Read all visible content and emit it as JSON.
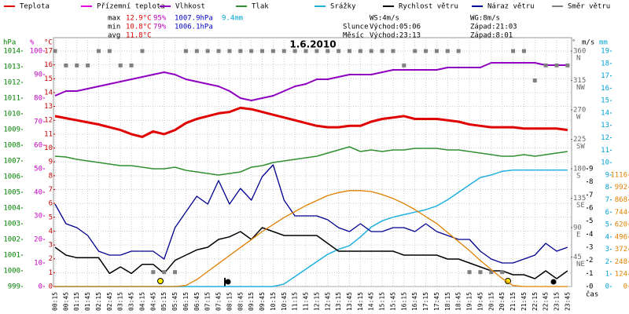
{
  "chart_data": {
    "type": "line",
    "title": "1.6.2010",
    "x_label": "čas",
    "grid": true,
    "categories": [
      "00:15",
      "00:45",
      "01:15",
      "01:45",
      "02:15",
      "02:45",
      "03:15",
      "03:45",
      "04:15",
      "04:45",
      "05:15",
      "05:45",
      "06:15",
      "06:45",
      "07:15",
      "07:45",
      "08:15",
      "08:45",
      "09:15",
      "09:45",
      "10:15",
      "10:45",
      "11:15",
      "11:45",
      "12:15",
      "12:45",
      "13:15",
      "13:45",
      "14:15",
      "14:45",
      "15:15",
      "15:45",
      "16:15",
      "16:45",
      "17:15",
      "17:45",
      "18:15",
      "18:45",
      "19:15",
      "19:45",
      "20:15",
      "20:45",
      "21:15",
      "21:45",
      "22:15",
      "22:45",
      "23:15",
      "23:45"
    ],
    "axes": {
      "pressure": {
        "label": "hPa",
        "color": "#008000",
        "lim": [
          999,
          1014
        ],
        "ticks": [
          999,
          1000,
          1001,
          1002,
          1003,
          1004,
          1005,
          1006,
          1007,
          1008,
          1009,
          1010,
          1011,
          1012,
          1013,
          1014
        ]
      },
      "humidity": {
        "label": "%",
        "color": "#c000c0",
        "lim": [
          0,
          100
        ],
        "ticks": [
          0,
          10,
          20,
          30,
          40,
          50,
          60,
          70,
          80,
          90,
          100
        ]
      },
      "temp": {
        "label": "°C",
        "color": "#c00000",
        "lim": [
          0,
          17
        ],
        "ticks": [
          0,
          1,
          2,
          3,
          4,
          5,
          6,
          7,
          8,
          9,
          10,
          11,
          12,
          13,
          14,
          15,
          16,
          17
        ]
      },
      "direction": {
        "label": "°",
        "color": "#666666",
        "lim": [
          0,
          360
        ],
        "ticks": [
          45,
          90,
          135,
          180,
          225,
          270,
          315,
          360
        ],
        "tick_names": [
          "NE",
          "E",
          "SE",
          "S",
          "SW",
          "W",
          "NW",
          "N"
        ]
      },
      "wind": {
        "label": "m/s",
        "color": "#000000",
        "lim": [
          0,
          18
        ],
        "ticks": [
          0,
          1,
          2,
          3,
          4,
          5,
          6,
          7,
          8,
          9
        ]
      },
      "rain": {
        "label": "mm",
        "color": "#00a0d0",
        "lim": [
          0,
          19
        ],
        "ticks": [
          0,
          1,
          2,
          3,
          4,
          5,
          6,
          7,
          8,
          9,
          10,
          11,
          12,
          13,
          14,
          15,
          16,
          17,
          18,
          19
        ]
      },
      "solar": {
        "color": "#e08000",
        "lim": [
          0,
          2356
        ],
        "ticks": [
          0,
          124,
          248,
          372,
          496,
          620,
          744,
          868,
          992,
          1116
        ]
      }
    },
    "series": [
      {
        "name": "Teplota",
        "color": "#e00000",
        "axis": "temp",
        "width": 3,
        "values": [
          12.3,
          12.15,
          12.0,
          11.85,
          11.7,
          11.5,
          11.3,
          11.0,
          10.8,
          11.2,
          11.0,
          11.3,
          11.8,
          12.1,
          12.3,
          12.5,
          12.6,
          12.9,
          12.8,
          12.6,
          12.4,
          12.2,
          12.0,
          11.8,
          11.6,
          11.5,
          11.5,
          11.6,
          11.6,
          11.9,
          12.1,
          12.2,
          12.3,
          12.1,
          12.1,
          12.1,
          12.0,
          11.9,
          11.7,
          11.6,
          11.5,
          11.5,
          11.5,
          11.4,
          11.4,
          11.4,
          11.4,
          11.3
        ]
      },
      {
        "name": "Přízemní teplota",
        "color": "#e000e0"
      },
      {
        "name": "Vlhkost",
        "color": "#9000c0",
        "axis": "humidity",
        "width": 2,
        "values": [
          81,
          83,
          83,
          84,
          85,
          86,
          87,
          88,
          89,
          90,
          91,
          90,
          88,
          87,
          86,
          85,
          83,
          80,
          79,
          80,
          81,
          83,
          85,
          86,
          88,
          88,
          89,
          90,
          90,
          90,
          91,
          92,
          92,
          92,
          92,
          92,
          93,
          93,
          93,
          93,
          95,
          95,
          95,
          95,
          95,
          94,
          94,
          94
        ]
      },
      {
        "name": "Tlak",
        "color": "#309030",
        "axis": "pressure",
        "width": 1.5,
        "values": [
          1007.3,
          1007.25,
          1007.1,
          1007.0,
          1006.9,
          1006.8,
          1006.7,
          1006.7,
          1006.6,
          1006.5,
          1006.5,
          1006.6,
          1006.4,
          1006.3,
          1006.2,
          1006.1,
          1006.2,
          1006.3,
          1006.6,
          1006.7,
          1006.9,
          1007.0,
          1007.1,
          1007.2,
          1007.3,
          1007.5,
          1007.7,
          1007.9,
          1007.6,
          1007.7,
          1007.6,
          1007.7,
          1007.7,
          1007.8,
          1007.8,
          1007.8,
          1007.7,
          1007.7,
          1007.6,
          1007.5,
          1007.4,
          1007.3,
          1007.3,
          1007.4,
          1007.3,
          1007.4,
          1007.5,
          1007.6
        ]
      },
      {
        "name": "Srážky",
        "color": "#20b0e0",
        "axis": "rain",
        "width": 1.5,
        "values": [
          0,
          0,
          0,
          0,
          0,
          0,
          0,
          0,
          0,
          0,
          0,
          0,
          0,
          0,
          0,
          0,
          0,
          0,
          0,
          0,
          0,
          0.2,
          0.8,
          1.4,
          2.0,
          2.6,
          3.0,
          3.3,
          4.0,
          4.8,
          5.3,
          5.6,
          5.8,
          6.0,
          6.2,
          6.5,
          7.0,
          7.6,
          8.2,
          8.8,
          9.0,
          9.3,
          9.4,
          9.4,
          9.4,
          9.4,
          9.4,
          9.4
        ]
      },
      {
        "name": "Rychlost větru",
        "color": "#000000",
        "axis": "wind",
        "width": 1.5,
        "values": [
          3.0,
          2.4,
          2.2,
          2.2,
          2.2,
          1.0,
          1.5,
          1.0,
          1.7,
          1.7,
          1.0,
          2.0,
          2.4,
          2.8,
          3.0,
          3.6,
          3.8,
          4.2,
          3.6,
          4.5,
          4.2,
          3.9,
          3.9,
          3.9,
          3.9,
          3.3,
          2.7,
          2.7,
          2.7,
          2.7,
          2.7,
          2.7,
          2.4,
          2.4,
          2.4,
          2.4,
          2.1,
          2.1,
          1.8,
          1.5,
          1.2,
          1.2,
          0.9,
          0.9,
          0.6,
          1.2,
          0.6,
          1.2
        ]
      },
      {
        "name": "Náraz větru",
        "color": "#000090",
        "axis": "wind",
        "width": 1.3,
        "values": [
          6.3,
          4.8,
          4.5,
          3.9,
          2.7,
          2.4,
          2.4,
          2.7,
          2.7,
          2.7,
          2.1,
          4.5,
          5.7,
          6.9,
          6.3,
          8.1,
          6.3,
          7.5,
          6.6,
          8.4,
          9.3,
          6.6,
          5.4,
          5.4,
          5.4,
          5.1,
          4.5,
          4.2,
          4.8,
          4.2,
          4.2,
          4.5,
          4.5,
          4.2,
          4.8,
          4.2,
          3.9,
          3.6,
          3.6,
          2.7,
          2.1,
          1.8,
          1.8,
          2.1,
          2.4,
          3.3,
          2.7,
          3.0
        ]
      },
      {
        "name": "Směr větru",
        "color": "#808080",
        "axis": "direction",
        "marker": "square",
        "values": [
          360,
          338,
          338,
          338,
          360,
          360,
          338,
          338,
          360,
          22,
          22,
          22,
          360,
          360,
          360,
          360,
          360,
          360,
          360,
          360,
          360,
          360,
          360,
          360,
          360,
          360,
          360,
          360,
          360,
          360,
          360,
          360,
          338,
          360,
          360,
          360,
          360,
          360,
          22,
          22,
          22,
          22,
          360,
          360,
          315,
          338,
          338,
          338
        ]
      },
      {
        "axis": "solar",
        "color": "#e08000",
        "width": 1.3,
        "values": [
          0,
          0,
          0,
          0,
          0,
          0,
          0,
          0,
          0,
          0,
          0,
          0,
          10,
          70,
          150,
          230,
          310,
          390,
          470,
          550,
          620,
          690,
          750,
          810,
          860,
          910,
          940,
          960,
          960,
          950,
          920,
          880,
          830,
          770,
          700,
          630,
          540,
          450,
          360,
          260,
          170,
          80,
          10,
          0,
          0,
          0,
          0,
          0
        ]
      }
    ],
    "stats": [
      {
        "label": "max",
        "cells": [
          {
            "text": "12.9°C",
            "color": "#e00000"
          },
          {
            "text": "95%",
            "color": "#c000c0"
          },
          {
            "text": "1007.9hPa",
            "color": "#0000c0"
          },
          {
            "text": "9.4mm",
            "color": "#00a0d0"
          }
        ]
      },
      {
        "label": "min",
        "cells": [
          {
            "text": "10.8°C",
            "color": "#e00000"
          },
          {
            "text": "79%",
            "color": "#c000c0"
          },
          {
            "text": "1006.1hPa",
            "color": "#0000c0"
          }
        ]
      },
      {
        "label": "avg",
        "cells": [
          {
            "text": "11.8°C",
            "color": "#e00000"
          }
        ]
      }
    ],
    "wind_info": [
      "WS:4m/s",
      "WG:8m/s"
    ],
    "sun": [
      "Slunce",
      "Východ:05:06",
      "Západ:21:03"
    ],
    "moon": [
      "Měsíc",
      "Východ:23:13",
      "Západ:8:01"
    ]
  }
}
